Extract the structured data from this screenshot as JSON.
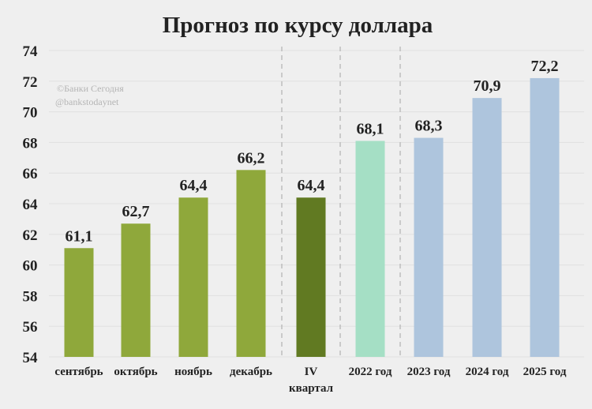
{
  "chart_data": {
    "type": "bar",
    "title": "Прогноз по курсу доллара",
    "watermark": [
      "©Банки Сегодня",
      "@bankstodaynet"
    ],
    "categories": [
      [
        "сентябрь"
      ],
      [
        "октябрь"
      ],
      [
        "ноябрь"
      ],
      [
        "декабрь"
      ],
      [
        "IV",
        "квартал"
      ],
      [
        "2022 год"
      ],
      [
        "2023 год"
      ],
      [
        "2024 год"
      ],
      [
        "2025 год"
      ]
    ],
    "values": [
      61.1,
      62.7,
      64.4,
      66.2,
      64.4,
      68.1,
      68.3,
      70.9,
      72.2
    ],
    "value_labels": [
      "61,1",
      "62,7",
      "64,4",
      "66,2",
      "64,4",
      "68,1",
      "68,3",
      "70,9",
      "72,2"
    ],
    "bar_colors": [
      "#8fa83b",
      "#8fa83b",
      "#8fa83b",
      "#8fa83b",
      "#617a22",
      "#a5dfc5",
      "#aec5dd",
      "#aec5dd",
      "#aec5dd"
    ],
    "ylim": [
      54,
      74
    ],
    "yticks": [
      54,
      56,
      58,
      60,
      62,
      64,
      66,
      68,
      70,
      72,
      74
    ],
    "grid": true,
    "group_separators": "dashed",
    "xlabel": "",
    "ylabel": ""
  }
}
